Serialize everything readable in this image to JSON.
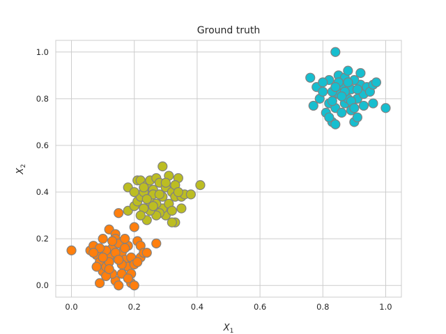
{
  "chart_data": {
    "type": "scatter",
    "title": "Ground truth",
    "xlabel": {
      "base": "X",
      "sub": "1"
    },
    "ylabel": {
      "base": "X",
      "sub": "2"
    },
    "xlim": [
      -0.05,
      1.05
    ],
    "ylim": [
      -0.05,
      1.05
    ],
    "xticks": [
      0.0,
      0.2,
      0.4,
      0.6,
      0.8,
      1.0
    ],
    "yticks": [
      0.0,
      0.2,
      0.4,
      0.6,
      0.8,
      1.0
    ],
    "xtick_labels": [
      "0.0",
      "0.2",
      "0.4",
      "0.6",
      "0.8",
      "1.0"
    ],
    "ytick_labels": [
      "0.0",
      "0.2",
      "0.4",
      "0.6",
      "0.8",
      "1.0"
    ],
    "grid": true,
    "marker_edge_color": "#808080",
    "series": [
      {
        "color": "#ff7f0e",
        "points": [
          [
            0.0,
            0.15
          ],
          [
            0.06,
            0.15
          ],
          [
            0.07,
            0.17
          ],
          [
            0.08,
            0.13
          ],
          [
            0.09,
            0.1
          ],
          [
            0.1,
            0.06
          ],
          [
            0.09,
            0.01
          ],
          [
            0.11,
            0.08
          ],
          [
            0.12,
            0.12
          ],
          [
            0.13,
            0.16
          ],
          [
            0.12,
            0.24
          ],
          [
            0.14,
            0.22
          ],
          [
            0.14,
            0.2
          ],
          [
            0.15,
            0.18
          ],
          [
            0.16,
            0.14
          ],
          [
            0.17,
            0.11
          ],
          [
            0.18,
            0.08
          ],
          [
            0.19,
            0.05
          ],
          [
            0.14,
            0.02
          ],
          [
            0.15,
            0.0
          ],
          [
            0.19,
            0.01
          ],
          [
            0.2,
            0.0
          ],
          [
            0.2,
            0.25
          ],
          [
            0.21,
            0.19
          ],
          [
            0.22,
            0.17
          ],
          [
            0.22,
            0.12
          ],
          [
            0.23,
            0.14
          ],
          [
            0.24,
            0.14
          ],
          [
            0.27,
            0.18
          ],
          [
            0.15,
            0.31
          ],
          [
            0.13,
            0.05
          ],
          [
            0.1,
            0.2
          ],
          [
            0.08,
            0.08
          ],
          [
            0.11,
            0.15
          ],
          [
            0.16,
            0.09
          ],
          [
            0.18,
            0.17
          ],
          [
            0.19,
            0.12
          ],
          [
            0.17,
            0.2
          ],
          [
            0.2,
            0.09
          ],
          [
            0.12,
            0.1
          ],
          [
            0.14,
            0.14
          ],
          [
            0.16,
            0.05
          ],
          [
            0.21,
            0.1
          ],
          [
            0.09,
            0.16
          ],
          [
            0.13,
            0.19
          ],
          [
            0.17,
            0.16
          ],
          [
            0.1,
            0.12
          ],
          [
            0.15,
            0.11
          ],
          [
            0.18,
            0.03
          ],
          [
            0.07,
            0.14
          ],
          [
            0.11,
            0.04
          ],
          [
            0.12,
            0.07
          ]
        ]
      },
      {
        "color": "#bcbd22",
        "points": [
          [
            0.18,
            0.42
          ],
          [
            0.18,
            0.32
          ],
          [
            0.2,
            0.34
          ],
          [
            0.21,
            0.36
          ],
          [
            0.21,
            0.45
          ],
          [
            0.22,
            0.45
          ],
          [
            0.22,
            0.38
          ],
          [
            0.23,
            0.4
          ],
          [
            0.24,
            0.43
          ],
          [
            0.25,
            0.45
          ],
          [
            0.26,
            0.41
          ],
          [
            0.27,
            0.46
          ],
          [
            0.28,
            0.44
          ],
          [
            0.29,
            0.51
          ],
          [
            0.3,
            0.42
          ],
          [
            0.31,
            0.47
          ],
          [
            0.32,
            0.4
          ],
          [
            0.33,
            0.38
          ],
          [
            0.34,
            0.46
          ],
          [
            0.35,
            0.38
          ],
          [
            0.36,
            0.39
          ],
          [
            0.38,
            0.39
          ],
          [
            0.41,
            0.43
          ],
          [
            0.35,
            0.33
          ],
          [
            0.33,
            0.27
          ],
          [
            0.32,
            0.27
          ],
          [
            0.3,
            0.3
          ],
          [
            0.29,
            0.33
          ],
          [
            0.28,
            0.31
          ],
          [
            0.27,
            0.3
          ],
          [
            0.25,
            0.32
          ],
          [
            0.25,
            0.36
          ],
          [
            0.24,
            0.28
          ],
          [
            0.23,
            0.33
          ],
          [
            0.22,
            0.3
          ],
          [
            0.26,
            0.39
          ],
          [
            0.27,
            0.35
          ],
          [
            0.29,
            0.38
          ],
          [
            0.31,
            0.35
          ],
          [
            0.3,
            0.44
          ],
          [
            0.24,
            0.37
          ],
          [
            0.33,
            0.43
          ],
          [
            0.26,
            0.34
          ],
          [
            0.2,
            0.4
          ],
          [
            0.28,
            0.39
          ],
          [
            0.32,
            0.32
          ],
          [
            0.23,
            0.42
          ],
          [
            0.34,
            0.4
          ]
        ]
      },
      {
        "color": "#17becf",
        "points": [
          [
            0.84,
            1.0
          ],
          [
            0.76,
            0.89
          ],
          [
            0.77,
            0.77
          ],
          [
            0.78,
            0.85
          ],
          [
            0.79,
            0.8
          ],
          [
            0.8,
            0.83
          ],
          [
            0.81,
            0.74
          ],
          [
            0.82,
            0.88
          ],
          [
            0.82,
            0.78
          ],
          [
            0.83,
            0.7
          ],
          [
            0.84,
            0.69
          ],
          [
            0.84,
            0.76
          ],
          [
            0.85,
            0.9
          ],
          [
            0.85,
            0.82
          ],
          [
            0.86,
            0.86
          ],
          [
            0.87,
            0.78
          ],
          [
            0.87,
            0.89
          ],
          [
            0.88,
            0.92
          ],
          [
            0.89,
            0.84
          ],
          [
            0.89,
            0.75
          ],
          [
            0.9,
            0.7
          ],
          [
            0.91,
            0.72
          ],
          [
            0.91,
            0.8
          ],
          [
            0.92,
            0.91
          ],
          [
            0.92,
            0.86
          ],
          [
            0.93,
            0.82
          ],
          [
            0.94,
            0.85
          ],
          [
            0.95,
            0.83
          ],
          [
            0.96,
            0.86
          ],
          [
            0.97,
            0.87
          ],
          [
            0.96,
            0.78
          ],
          [
            1.0,
            0.76
          ],
          [
            0.8,
            0.87
          ],
          [
            0.83,
            0.83
          ],
          [
            0.86,
            0.74
          ],
          [
            0.88,
            0.8
          ],
          [
            0.9,
            0.88
          ],
          [
            0.85,
            0.87
          ],
          [
            0.83,
            0.79
          ],
          [
            0.87,
            0.83
          ],
          [
            0.91,
            0.84
          ],
          [
            0.89,
            0.79
          ],
          [
            0.93,
            0.77
          ],
          [
            0.82,
            0.72
          ],
          [
            0.86,
            0.81
          ],
          [
            0.88,
            0.87
          ],
          [
            0.84,
            0.85
          ],
          [
            0.9,
            0.76
          ]
        ]
      }
    ]
  }
}
